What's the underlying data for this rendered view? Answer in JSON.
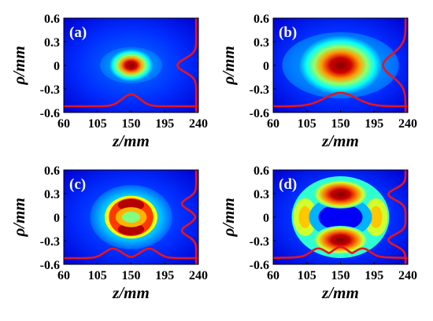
{
  "chart_data": [
    {
      "type": "heatmap",
      "panel_label": "(a)",
      "xlabel": "z/mm",
      "ylabel": "ρ/mm",
      "xlim": [
        60,
        240
      ],
      "ylim": [
        -0.6,
        0.6
      ],
      "xticks": [
        "60",
        "105",
        "150",
        "195",
        "240"
      ],
      "yticks": [
        "0.6",
        "0.3",
        "0",
        "-0.3",
        "-0.6"
      ],
      "colormap": "jet",
      "intensity_pattern": "gaussian-spot",
      "spot_center": [
        150,
        0
      ],
      "spot_half_width_z": 16,
      "spot_half_width_rho": 0.11,
      "curve_color": "#e8141c",
      "axial_profile_peak": {
        "z": 150,
        "rho": -0.37
      },
      "radial_profile_peak": {
        "z": 212,
        "rho": 0
      }
    },
    {
      "type": "heatmap",
      "panel_label": "(b)",
      "xlabel": "z/mm",
      "ylabel": "ρ/mm",
      "xlim": [
        60,
        240
      ],
      "ylim": [
        -0.6,
        0.6
      ],
      "xticks": [
        "60",
        "105",
        "150",
        "195",
        "240"
      ],
      "yticks": [
        "0.6",
        "0.3",
        "0",
        "-0.3",
        "-0.6"
      ],
      "colormap": "jet",
      "intensity_pattern": "gaussian-spot",
      "spot_center": [
        150,
        0
      ],
      "spot_half_width_z": 30,
      "spot_half_width_rho": 0.2,
      "curve_color": "#e8141c",
      "axial_profile_peak": {
        "z": 150,
        "rho": -0.35
      },
      "radial_profile_peak": {
        "z": 207,
        "rho": 0
      }
    },
    {
      "type": "heatmap",
      "panel_label": "(c)",
      "xlabel": "z/mm",
      "ylabel": "ρ/mm",
      "xlim": [
        60,
        240
      ],
      "ylim": [
        -0.6,
        0.6
      ],
      "xticks": [
        "60",
        "105",
        "150",
        "195",
        "240"
      ],
      "yticks": [
        "0.6",
        "0.3",
        "0",
        "-0.3",
        "-0.6"
      ],
      "colormap": "jet",
      "intensity_pattern": "ring",
      "ring_center": [
        150,
        0
      ],
      "ring_radius_z": 22,
      "ring_radius_rho": 0.17,
      "curve_color": "#e8141c",
      "axial_profile_peaks": [
        {
          "z": 126,
          "rho": -0.4
        },
        {
          "z": 174,
          "rho": -0.4
        }
      ],
      "radial_profile_peaks": [
        {
          "z": 218,
          "rho": 0.17
        },
        {
          "z": 218,
          "rho": -0.17
        }
      ]
    },
    {
      "type": "heatmap",
      "panel_label": "(d)",
      "xlabel": "z/mm",
      "ylabel": "ρ/mm",
      "xlim": [
        60,
        240
      ],
      "ylim": [
        -0.6,
        0.6
      ],
      "xticks": [
        "60",
        "105",
        "150",
        "195",
        "240"
      ],
      "yticks": [
        "0.6",
        "0.3",
        "0",
        "-0.3",
        "-0.6"
      ],
      "colormap": "jet",
      "intensity_pattern": "double-lobe",
      "lobe_centers": [
        [
          150,
          0.29
        ],
        [
          150,
          -0.29
        ]
      ],
      "curve_color": "#e8141c",
      "axial_profile_peaks": [
        {
          "z": 120,
          "rho": -0.42
        },
        {
          "z": 150,
          "rho": -0.41
        },
        {
          "z": 180,
          "rho": -0.42
        }
      ],
      "radial_profile_peaks": [
        {
          "z": 214,
          "rho": 0.29
        },
        {
          "z": 214,
          "rho": -0.29
        }
      ]
    }
  ]
}
